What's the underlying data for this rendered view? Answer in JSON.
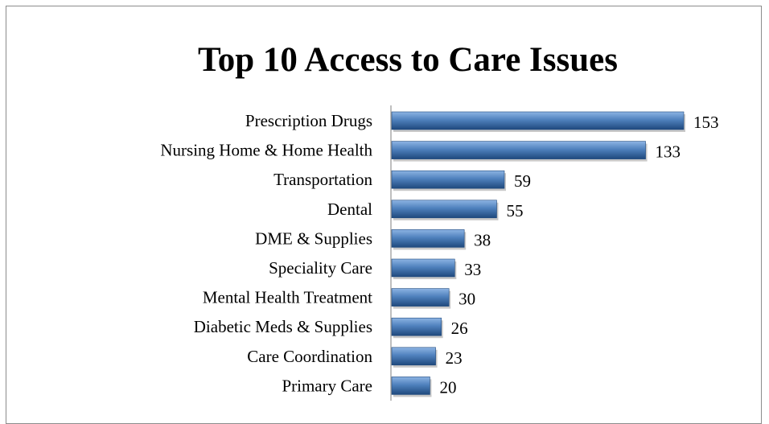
{
  "chart_data": {
    "type": "bar",
    "orientation": "horizontal",
    "title": "Top 10 Access to Care Issues",
    "categories": [
      "Prescription Drugs",
      "Nursing Home & Home Health",
      "Transportation",
      "Dental",
      "DME & Supplies",
      "Speciality Care",
      "Mental Health Treatment",
      "Diabetic Meds & Supplies",
      "Care Coordination",
      "Primary Care"
    ],
    "values": [
      153,
      133,
      59,
      55,
      38,
      33,
      30,
      26,
      23,
      20
    ],
    "xlabel": "",
    "ylabel": "",
    "xlim": [
      0,
      153
    ],
    "grid": false,
    "legend": "none",
    "colors": {
      "bar": "#4f81bd",
      "bar_light": "#8db4e3",
      "bar_dark": "#1f497d",
      "axis": "#7f7f7f"
    }
  }
}
